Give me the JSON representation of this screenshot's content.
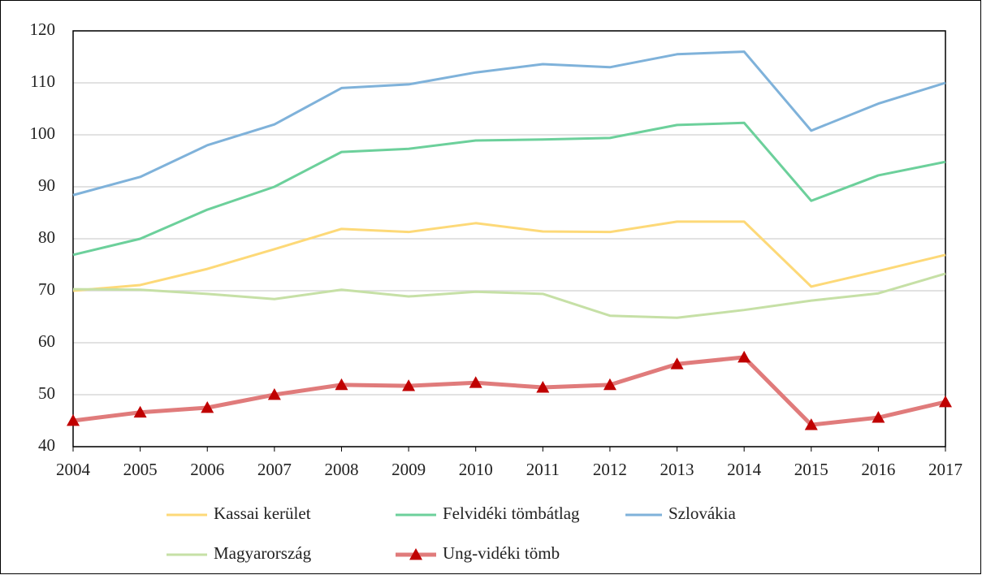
{
  "chart_data": {
    "type": "line",
    "x": [
      2004,
      2005,
      2006,
      2007,
      2008,
      2009,
      2010,
      2011,
      2012,
      2013,
      2014,
      2015,
      2016,
      2017
    ],
    "xlim": [
      2004,
      2017
    ],
    "xticks": [
      2004,
      2005,
      2006,
      2007,
      2008,
      2009,
      2010,
      2011,
      2012,
      2013,
      2014,
      2015,
      2016,
      2017
    ],
    "ylim": [
      40,
      120
    ],
    "yticks": [
      40,
      50,
      60,
      70,
      80,
      90,
      100,
      110,
      120
    ],
    "grid": true,
    "legend": "bottom",
    "series": [
      {
        "name": "Kassai kerület",
        "color": "#fdd978",
        "values": [
          70,
          71.1,
          74.2,
          78,
          81.9,
          81.3,
          83,
          81.4,
          81.3,
          83.3,
          83.3,
          70.8,
          73.8,
          76.9
        ]
      },
      {
        "name": "Felvidéki tömbátlag",
        "color": "#6cd09b",
        "values": [
          76.9,
          80,
          85.6,
          90,
          96.7,
          97.3,
          98.9,
          99.1,
          99.4,
          101.9,
          102.3,
          87.3,
          92.2,
          94.8
        ]
      },
      {
        "name": "Szlovákia",
        "color": "#7fb2da",
        "values": [
          88.4,
          91.9,
          98,
          102,
          109,
          109.7,
          112,
          113.6,
          113,
          115.5,
          116,
          100.8,
          106,
          110
        ]
      },
      {
        "name": "Magyarország",
        "color": "#c6e0a6",
        "values": [
          70.3,
          70.2,
          69.4,
          68.4,
          70.2,
          68.9,
          69.8,
          69.4,
          65.2,
          64.8,
          66.3,
          68.1,
          69.5,
          73.3
        ]
      },
      {
        "name": "Ung-vidéki tömb",
        "color": "#e07b7b",
        "marker": "triangle",
        "marker_color": "#c00000",
        "values": [
          45,
          46.6,
          47.5,
          50,
          51.9,
          51.7,
          52.3,
          51.4,
          51.9,
          55.9,
          57.2,
          44.2,
          45.6,
          48.6
        ]
      }
    ]
  }
}
